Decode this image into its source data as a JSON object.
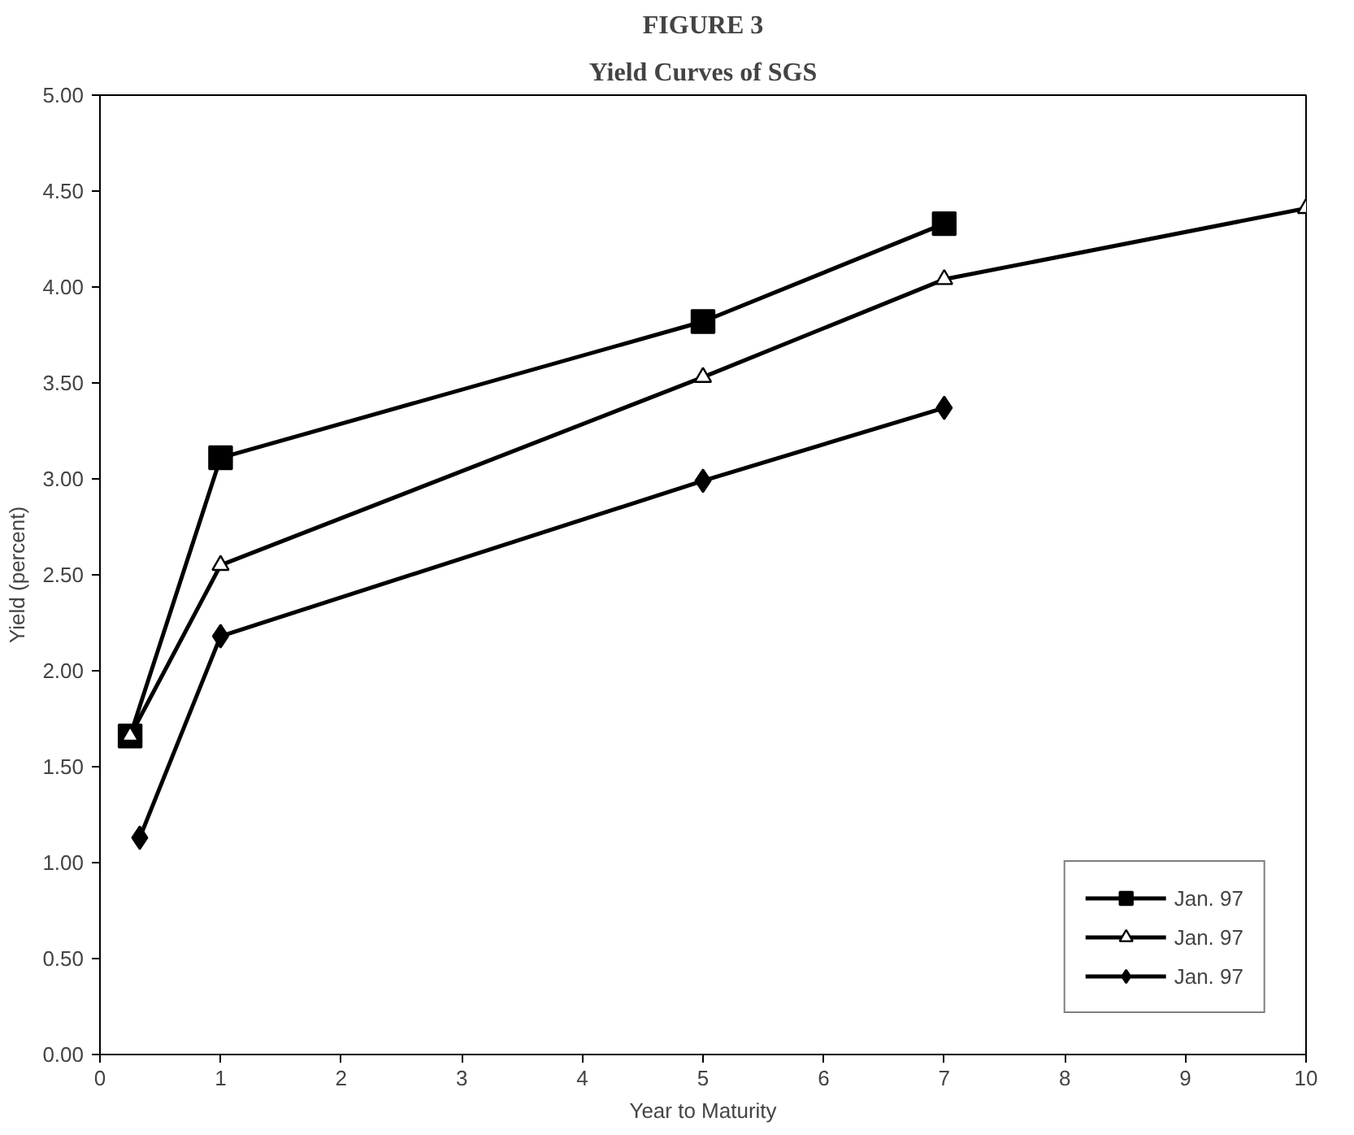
{
  "chart_data": {
    "type": "line",
    "title": "FIGURE 3",
    "subtitle": "Yield Curves of SGS",
    "xlabel": "Year to Maturity",
    "ylabel": "Yield (percent)",
    "xlim": [
      0,
      10
    ],
    "xticks": [
      0,
      1,
      2,
      3,
      4,
      5,
      6,
      7,
      8,
      9,
      10
    ],
    "ylim": [
      0,
      5
    ],
    "yticks": [
      {
        "value": 0,
        "label": "0.00"
      },
      {
        "value": 0.5,
        "label": "0.50"
      },
      {
        "value": 1,
        "label": "1.00"
      },
      {
        "value": 1.5,
        "label": "1.50"
      },
      {
        "value": 2,
        "label": "2.00"
      },
      {
        "value": 2.5,
        "label": "2.50"
      },
      {
        "value": 3,
        "label": "3.00"
      },
      {
        "value": 3.5,
        "label": "3.50"
      },
      {
        "value": 4,
        "label": "4.00"
      },
      {
        "value": 4.5,
        "label": "4.50"
      },
      {
        "value": 5,
        "label": "5.00"
      }
    ],
    "grid": false,
    "legend": "bottom right",
    "line_style": "solid",
    "series": [
      {
        "name": "Jan. 97",
        "color": "#000000",
        "marker": "square",
        "x": [
          0.25,
          1,
          5,
          7
        ],
        "values": [
          1.66,
          3.11,
          3.82,
          4.33
        ]
      },
      {
        "name": "Jan. 97",
        "color": "#000000",
        "marker": "triangle",
        "x": [
          0.25,
          1,
          5,
          7,
          10
        ],
        "values": [
          1.66,
          2.55,
          3.53,
          4.04,
          4.41
        ]
      },
      {
        "name": "Jan. 97",
        "color": "#000000",
        "marker": "diamond",
        "x": [
          0.33,
          1,
          5,
          7
        ],
        "values": [
          1.13,
          2.18,
          2.99,
          3.37
        ]
      }
    ]
  }
}
